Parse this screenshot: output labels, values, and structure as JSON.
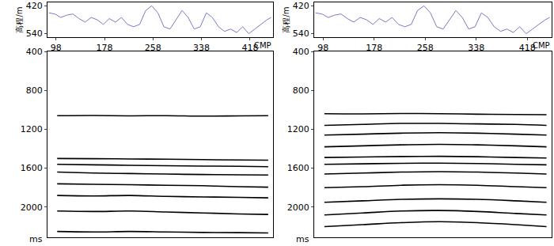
{
  "chart_data": [
    {
      "type": "seismic_section",
      "elevation": {
        "type": "line",
        "xlabel": "CMP",
        "ylabel": "高程/m",
        "color": "#7a7ac8",
        "x": [
          86,
          96,
          106,
          116,
          126,
          136,
          146,
          156,
          166,
          176,
          186,
          196,
          206,
          216,
          226,
          236,
          246,
          256,
          266,
          276,
          286,
          296,
          306,
          316,
          326,
          336,
          346,
          356,
          366,
          376,
          386,
          396,
          406,
          416,
          426,
          436,
          446,
          453
        ],
        "values": [
          450,
          455,
          470,
          460,
          455,
          475,
          490,
          470,
          480,
          500,
          475,
          490,
          470,
          500,
          510,
          500,
          440,
          420,
          450,
          510,
          520,
          480,
          440,
          470,
          520,
          510,
          450,
          470,
          510,
          530,
          520,
          535,
          510,
          540,
          520,
          500,
          480,
          470
        ],
        "xlim": [
          84,
          456
        ],
        "xticks": [
          98,
          178,
          258,
          338,
          418
        ],
        "ylim": [
          555,
          405
        ],
        "yticks": [
          420,
          540
        ],
        "grid": false
      },
      "section": {
        "type": "line",
        "ylabel": "ms",
        "color": "#000000",
        "tick_labels": "y",
        "grid": false,
        "xlim": [
          84,
          456
        ],
        "ylim": [
          2310,
          400
        ],
        "yticks": [
          400,
          800,
          1200,
          1600,
          2000
        ],
        "x": [
          100,
          160,
          220,
          280,
          340,
          400,
          448
        ],
        "series": [
          {
            "values": [
              1060,
              1058,
              1062,
              1060,
              1065,
              1062,
              1060
            ]
          },
          {
            "values": [
              1500,
              1502,
              1505,
              1508,
              1512,
              1516,
              1518
            ]
          },
          {
            "values": [
              1560,
              1565,
              1570,
              1575,
              1578,
              1580,
              1585
            ]
          },
          {
            "values": [
              1640,
              1650,
              1655,
              1660,
              1665,
              1668,
              1670
            ]
          },
          {
            "values": [
              1760,
              1765,
              1770,
              1775,
              1780,
              1790,
              1795
            ]
          },
          {
            "values": [
              1880,
              1885,
              1880,
              1890,
              1895,
              1900,
              1905
            ]
          },
          {
            "values": [
              2040,
              2045,
              2040,
              2050,
              2060,
              2070,
              2075
            ]
          },
          {
            "values": [
              2250,
              2255,
              2250,
              2255,
              2260,
              2262,
              2265
            ]
          }
        ]
      }
    },
    {
      "type": "seismic_section",
      "elevation": {
        "type": "line",
        "xlabel": "CMP",
        "ylabel": "高程/m",
        "color": "#7a7ac8",
        "x": [
          86,
          96,
          106,
          116,
          126,
          136,
          146,
          156,
          166,
          176,
          186,
          196,
          206,
          216,
          226,
          236,
          246,
          256,
          266,
          276,
          286,
          296,
          306,
          316,
          326,
          336,
          346,
          356,
          366,
          376,
          386,
          396,
          406,
          416,
          426,
          436,
          446,
          453
        ],
        "values": [
          450,
          455,
          470,
          460,
          455,
          475,
          490,
          470,
          480,
          500,
          475,
          490,
          470,
          500,
          510,
          500,
          440,
          420,
          450,
          510,
          520,
          480,
          440,
          470,
          520,
          510,
          450,
          470,
          510,
          530,
          520,
          535,
          510,
          540,
          520,
          500,
          480,
          470
        ],
        "xlim": [
          84,
          456
        ],
        "xticks": [
          98,
          178,
          258,
          338,
          418
        ],
        "ylim": [
          555,
          405
        ],
        "yticks": [
          420,
          540
        ],
        "grid": false
      },
      "section": {
        "type": "line",
        "ylabel": "ms",
        "color": "#000000",
        "tick_labels": "y",
        "grid": false,
        "xlim": [
          84,
          456
        ],
        "ylim": [
          2310,
          400
        ],
        "yticks": [
          400,
          800,
          1200,
          1600,
          2000
        ],
        "x": [
          100,
          160,
          220,
          280,
          340,
          400,
          448
        ],
        "series": [
          {
            "values": [
              1040,
              1042,
              1038,
              1040,
              1045,
              1048,
              1050
            ]
          },
          {
            "values": [
              1160,
              1150,
              1140,
              1140,
              1145,
              1150,
              1160
            ]
          },
          {
            "values": [
              1260,
              1250,
              1240,
              1235,
              1240,
              1250,
              1260
            ]
          },
          {
            "values": [
              1380,
              1370,
              1360,
              1355,
              1360,
              1370,
              1380
            ]
          },
          {
            "values": [
              1490,
              1485,
              1480,
              1478,
              1482,
              1490,
              1495
            ]
          },
          {
            "values": [
              1560,
              1555,
              1550,
              1548,
              1552,
              1560,
              1565
            ]
          },
          {
            "values": [
              1660,
              1650,
              1640,
              1635,
              1640,
              1650,
              1660
            ]
          },
          {
            "values": [
              1800,
              1790,
              1775,
              1770,
              1775,
              1790,
              1800
            ]
          },
          {
            "values": [
              1950,
              1935,
              1920,
              1915,
              1920,
              1935,
              1950
            ]
          },
          {
            "values": [
              2080,
              2060,
              2040,
              2035,
              2045,
              2065,
              2080
            ]
          },
          {
            "values": [
              2200,
              2180,
              2160,
              2150,
              2160,
              2180,
              2200
            ]
          }
        ]
      }
    }
  ]
}
